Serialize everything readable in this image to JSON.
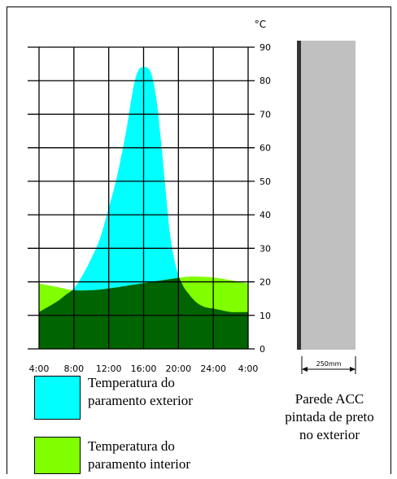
{
  "chart_data": {
    "type": "area",
    "title": "",
    "xlabel": "",
    "ylabel": "",
    "y_unit": "°C",
    "x_tick_labels": [
      "4:00",
      "8:00",
      "12:00",
      "16:00",
      "20:00",
      "24:00",
      "4:00"
    ],
    "y_ticks": [
      0,
      10,
      20,
      30,
      40,
      50,
      60,
      70,
      80,
      90
    ],
    "x_range_hours": [
      4,
      28
    ],
    "ylim": [
      0,
      90
    ],
    "grid": true,
    "series": [
      {
        "name": "Temperatura do\nparamento exterior",
        "color": "#00ffff",
        "x": [
          4,
          6,
          7,
          8,
          9,
          10,
          11,
          12,
          13,
          14,
          14.5,
          15,
          15.5,
          16,
          16.3,
          16.6,
          17,
          17.5,
          18,
          18.5,
          19,
          19.5,
          20,
          20.5,
          21,
          22,
          23,
          24,
          25,
          26,
          27,
          28
        ],
        "values": [
          11,
          14,
          16,
          18,
          22,
          27,
          33,
          42,
          52,
          65,
          73,
          80,
          83.5,
          84,
          84,
          83.5,
          81,
          74,
          62,
          48,
          35,
          27,
          22,
          19,
          17,
          14,
          12.5,
          12,
          11.5,
          11,
          11,
          11
        ]
      },
      {
        "name": "Temperatura do\nparamento interior",
        "color": "#80ff00",
        "x": [
          4,
          6,
          8,
          10,
          12,
          14,
          16,
          18,
          20,
          21,
          22,
          24,
          26,
          28
        ],
        "values": [
          19.5,
          18.5,
          17.5,
          17.5,
          18,
          18.8,
          19.6,
          20.4,
          21.2,
          21.5,
          21.6,
          21.3,
          20.5,
          19.5
        ]
      }
    ],
    "overlap_color": "#006400"
  },
  "wall": {
    "dimension_label": "250mm",
    "caption": "Parede ACC\npintada de preto\nno exterior",
    "fill_color": "#c0c0c0",
    "face_color": "#333333"
  },
  "legend": [
    {
      "label": "Temperatura do\nparamento exterior",
      "color": "#00ffff"
    },
    {
      "label": "Temperatura do\nparamento interior",
      "color": "#80ff00"
    }
  ]
}
